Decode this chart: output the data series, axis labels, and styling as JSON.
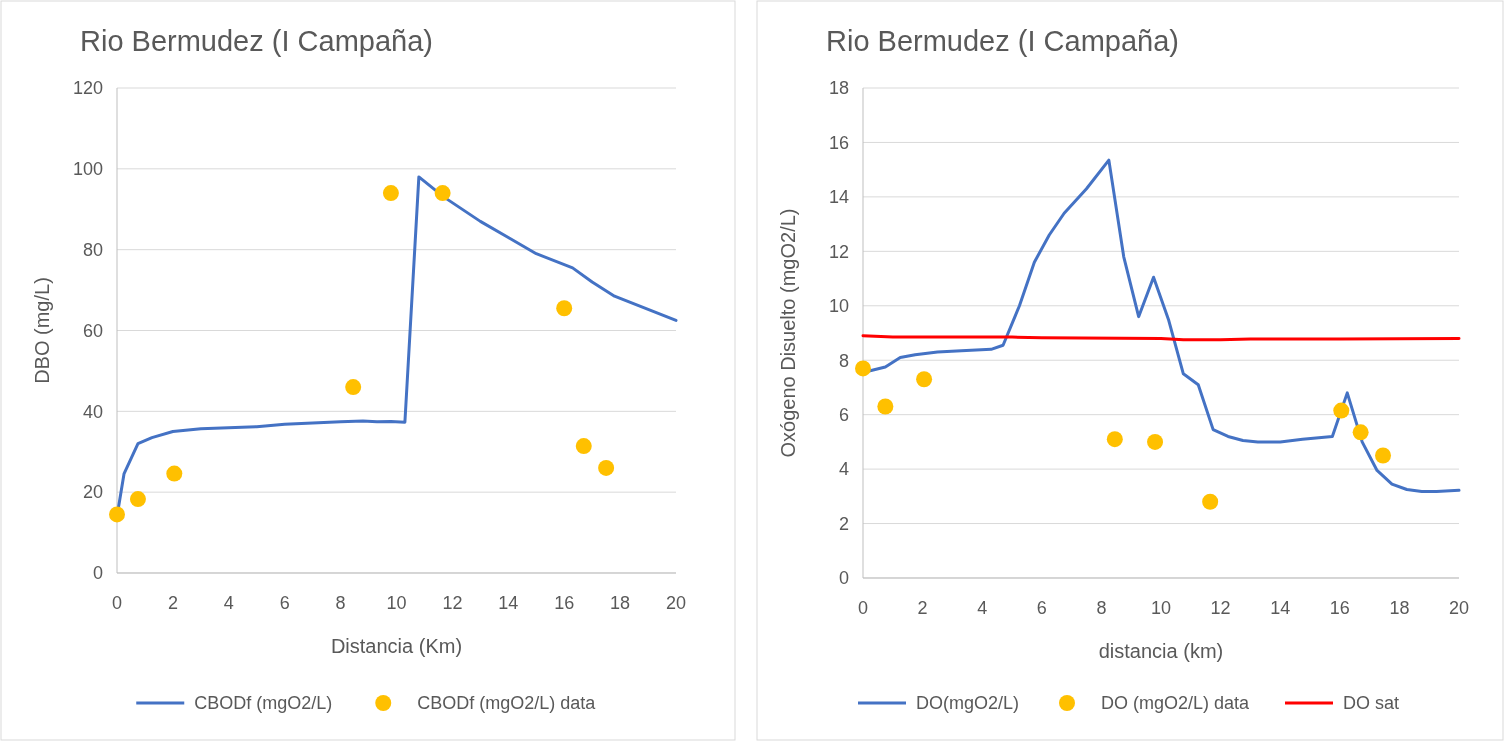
{
  "chart_data": [
    {
      "type": "line",
      "title": "Rio Bermudez (I Campaña)",
      "xlabel": "Distancia (Km)",
      "ylabel": "DBO (mg/L)",
      "xlim": [
        0,
        20
      ],
      "xticks": [
        0,
        2,
        4,
        6,
        8,
        10,
        12,
        14,
        16,
        18,
        20
      ],
      "ylim": [
        0,
        120
      ],
      "yticks": [
        0,
        20,
        40,
        60,
        80,
        100,
        120
      ],
      "grid": "y",
      "legend": "bottom",
      "series": [
        {
          "name": "CBODf (mgO2/L)",
          "marker": "none",
          "color": "#4472c4",
          "x": [
            0,
            0.25,
            0.75,
            1.25,
            2,
            3,
            5,
            6,
            8,
            8.8,
            9.3,
            9.8,
            10.3,
            10.8,
            11.7,
            13,
            14,
            15,
            16.3,
            17,
            17.8,
            20
          ],
          "values": [
            14,
            24.5,
            32,
            33.5,
            35,
            35.7,
            36.2,
            36.8,
            37.4,
            37.6,
            37.4,
            37.5,
            37.3,
            98,
            93,
            87,
            83,
            79,
            75.5,
            72,
            68.5,
            62.5
          ]
        },
        {
          "name": "CBODf (mgO2/L) data",
          "type": "scatter",
          "marker": "circle",
          "color": "#ffc000",
          "x": [
            0,
            0.75,
            2.05,
            8.45,
            9.8,
            11.65,
            16,
            16.7,
            17.5
          ],
          "values": [
            14.5,
            18.3,
            24.6,
            46,
            94,
            94,
            65.5,
            31.4,
            26
          ]
        }
      ]
    },
    {
      "type": "line",
      "title": "Rio Bermudez (I Campaña)",
      "xlabel": "distancia (km)",
      "ylabel": "Oxógeno Disuelto (mgO2/L)",
      "xlim": [
        0,
        20
      ],
      "xticks": [
        0,
        2,
        4,
        6,
        8,
        10,
        12,
        14,
        16,
        18,
        20
      ],
      "ylim": [
        0,
        18
      ],
      "yticks": [
        0,
        2,
        4,
        6,
        8,
        10,
        12,
        14,
        16,
        18
      ],
      "grid": "y",
      "legend": "bottom",
      "series": [
        {
          "name": "DO(mgO2/L)",
          "marker": "none",
          "color": "#4472c4",
          "x": [
            0,
            0.75,
            1.25,
            1.75,
            2.5,
            3.3,
            4.3,
            4.7,
            5.25,
            5.75,
            6.25,
            6.75,
            7.5,
            8.25,
            8.75,
            9.25,
            9.75,
            10.25,
            10.75,
            11.25,
            11.75,
            12.25,
            12.75,
            13.25,
            14,
            14.75,
            15.75,
            16.25,
            16.75,
            17.25,
            17.75,
            18.25,
            18.75,
            19.25,
            20
          ],
          "values": [
            7.55,
            7.75,
            8.1,
            8.2,
            8.3,
            8.35,
            8.4,
            8.55,
            10,
            11.6,
            12.6,
            13.4,
            14.3,
            15.35,
            11.8,
            9.6,
            11.05,
            9.5,
            7.5,
            7.1,
            5.45,
            5.2,
            5.05,
            5,
            5,
            5.1,
            5.2,
            6.8,
            5,
            3.95,
            3.45,
            3.25,
            3.18,
            3.18,
            3.22
          ]
        },
        {
          "name": "DO (mgO2/L) data",
          "type": "scatter",
          "marker": "circle",
          "color": "#ffc000",
          "x": [
            0,
            0.75,
            2.05,
            8.45,
            9.8,
            11.65,
            16.05,
            16.7,
            17.45
          ],
          "values": [
            7.7,
            6.3,
            7.3,
            5.1,
            5.0,
            2.8,
            6.15,
            5.35,
            4.5
          ]
        },
        {
          "name": "DO sat",
          "marker": "none",
          "color": "#ff0000",
          "x": [
            0,
            1,
            5,
            6,
            10,
            10.75,
            12,
            13,
            16,
            20
          ],
          "values": [
            8.9,
            8.85,
            8.85,
            8.83,
            8.8,
            8.75,
            8.75,
            8.78,
            8.78,
            8.8
          ]
        }
      ]
    }
  ]
}
